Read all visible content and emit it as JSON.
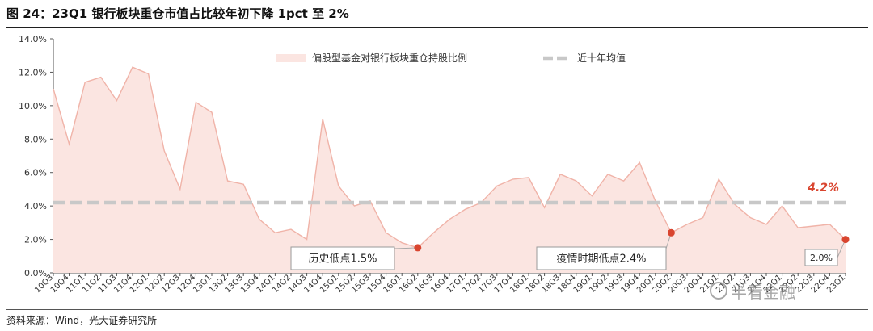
{
  "title": "图 24：23Q1 银行板块重仓市值占比较年初下降 1pct 至 2%",
  "source": "资料来源：Wind，光大证券研究所",
  "watermark": "半看金融",
  "colors": {
    "area_fill": "#fbe5e1",
    "area_line": "#f0b3a8",
    "point": "#d9452f",
    "mean_line": "#c8c8c8",
    "mean_label": "#d9452f"
  },
  "chart_data": {
    "type": "area",
    "title": "",
    "xlabel": "",
    "ylabel": "",
    "ylim": [
      0,
      14
    ],
    "y_ticks": [
      "0.0%",
      "2.0%",
      "4.0%",
      "6.0%",
      "8.0%",
      "10.0%",
      "12.0%",
      "14.0%"
    ],
    "grid": false,
    "legend_position": "top",
    "categories": [
      "10Q3",
      "10Q4",
      "11Q1",
      "11Q2",
      "11Q3",
      "11Q4",
      "12Q1",
      "12Q2",
      "12Q3",
      "12Q4",
      "13Q1",
      "13Q2",
      "13Q3",
      "13Q4",
      "14Q1",
      "14Q2",
      "14Q3",
      "14Q4",
      "15Q1",
      "15Q2",
      "15Q3",
      "15Q4",
      "16Q1",
      "16Q2",
      "16Q3",
      "16Q4",
      "17Q1",
      "17Q2",
      "17Q3",
      "17Q4",
      "18Q1",
      "18Q2",
      "18Q3",
      "18Q4",
      "19Q1",
      "19Q2",
      "19Q3",
      "19Q4",
      "20Q1",
      "20Q2",
      "20Q3",
      "20Q4",
      "21Q1",
      "21Q2",
      "21Q3",
      "21Q4",
      "22Q1",
      "22Q2",
      "22Q3",
      "22Q4",
      "23Q1"
    ],
    "series": [
      {
        "name": "偏股型基金对银行板块重仓持股比例",
        "values": [
          11.0,
          7.7,
          11.4,
          11.7,
          10.3,
          12.3,
          11.9,
          7.3,
          5.0,
          10.2,
          9.6,
          5.5,
          5.3,
          3.2,
          2.4,
          2.6,
          2.0,
          9.2,
          5.2,
          4.0,
          4.3,
          2.4,
          1.8,
          1.5,
          2.4,
          3.2,
          3.8,
          4.2,
          5.2,
          5.6,
          5.7,
          3.9,
          5.9,
          5.5,
          4.6,
          5.9,
          5.5,
          6.6,
          4.3,
          2.4,
          2.9,
          3.3,
          5.6,
          4.1,
          3.3,
          2.9,
          4.0,
          2.7,
          2.8,
          2.9,
          2.0
        ]
      },
      {
        "name": "近十年均值",
        "value": 4.2
      }
    ],
    "mean_label": "4.2%",
    "annotations": [
      {
        "category": "16Q2",
        "value": 1.5,
        "label": "历史低点1.5%"
      },
      {
        "category": "20Q2",
        "value": 2.4,
        "label": "疫情时期低点2.4%"
      },
      {
        "category": "23Q1",
        "value": 2.0,
        "label": "2.0%"
      }
    ]
  }
}
